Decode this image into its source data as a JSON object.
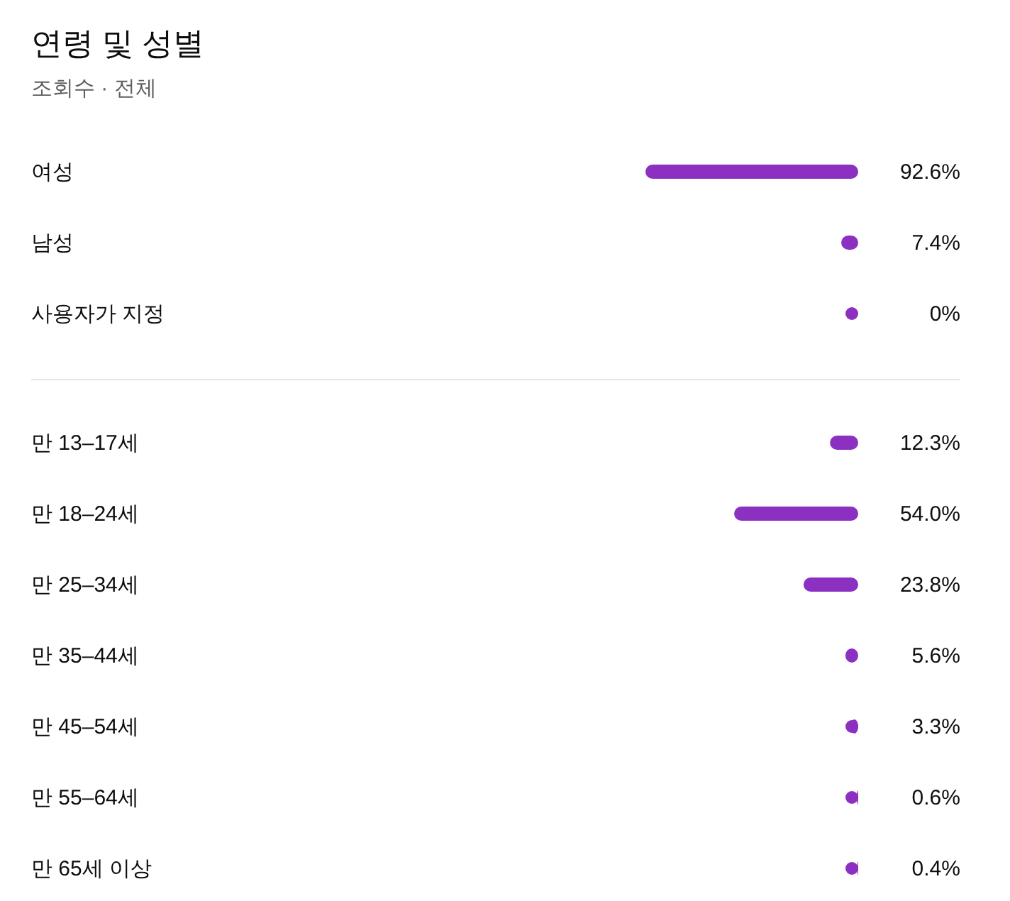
{
  "chart_data": [
    {
      "type": "bar",
      "title": "연령 및 성별",
      "subtitle": "조회수 · 전체",
      "orientation": "horizontal",
      "categories": [
        "여성",
        "남성",
        "사용자가 지정"
      ],
      "values": [
        92.6,
        7.4,
        0
      ],
      "value_labels": [
        "92.6%",
        "7.4%",
        "0%"
      ],
      "color": "#8c30c2",
      "tick_labels": "y"
    },
    {
      "type": "bar",
      "orientation": "horizontal",
      "categories": [
        "만 13–17세",
        "만 18–24세",
        "만 25–34세",
        "만 35–44세",
        "만 45–54세",
        "만 55–64세",
        "만 65세 이상"
      ],
      "values": [
        12.3,
        54.0,
        23.8,
        5.6,
        3.3,
        0.6,
        0.4
      ],
      "value_labels": [
        "12.3%",
        "54.0%",
        "23.8%",
        "5.6%",
        "3.3%",
        "0.6%",
        "0.4%"
      ],
      "color": "#8c30c2",
      "tick_labels": "y"
    }
  ]
}
